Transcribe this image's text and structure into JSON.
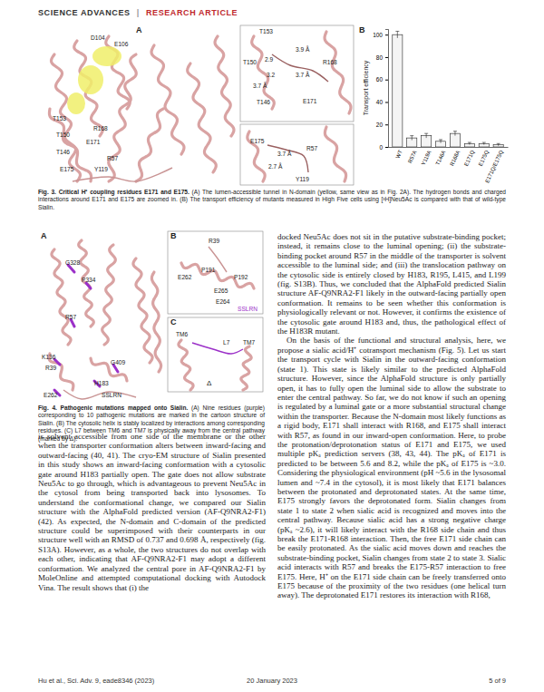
{
  "header": {
    "journal": "SCIENCE ADVANCES",
    "separator": "|",
    "section": "RESEARCH ARTICLE"
  },
  "figure_3": {
    "panel_a": {
      "letter": "A",
      "labels": [
        "D104",
        "E106",
        "T153",
        "T150",
        "T146",
        "E171",
        "R168",
        "R57",
        "E175",
        "Y119"
      ],
      "inset_1_labels": [
        "T153",
        "3.9 Å",
        "T150",
        "2.9",
        "3.7 Å",
        "3.2",
        "R168",
        "3.7 Å",
        "T146",
        "E171"
      ],
      "inset_2_labels": [
        "E175",
        "R57",
        "3.7 Å",
        "2.7 Å",
        "Y119"
      ]
    },
    "panel_b": {
      "letter": "B"
    },
    "caption": {
      "label": "Fig. 3.",
      "title": "Critical H⁺ coupling residues E171 and E175.",
      "text": "(A) The lumen-accessible tunnel in N-domain (yellow, same view as in Fig. 2A). The hydrogen bonds and charged interactions around E171 and E175 are zoomed in. (B) The transport efficiency of mutants measured in High Five cells using [³H]Neu5Ac is compared with that of wild-type Sialin."
    }
  },
  "chart_data": {
    "type": "bar",
    "y_label": "Transport efficiency",
    "categories": [
      "WT",
      "R57A",
      "Y119A",
      "T146A",
      "R168A",
      "E171Q",
      "E175Q",
      "E171Q/E175Q"
    ],
    "values": [
      100,
      8,
      10,
      5,
      12,
      3,
      3,
      2
    ],
    "errors": [
      3,
      2,
      2,
      1.5,
      2,
      1,
      1,
      1
    ],
    "color": "#f4f4f4",
    "ylim": [
      0,
      105
    ],
    "yticks": [
      0,
      20,
      40,
      60,
      80,
      100
    ],
    "grid": false
  },
  "figure_4": {
    "panel_a": {
      "letter": "A",
      "labels": [
        "G328",
        "P334",
        "R57",
        "G409",
        "K136",
        "R39",
        "H183",
        "E262",
        "SSLRN"
      ]
    },
    "panel_b": {
      "letter": "B",
      "labels": [
        "R39",
        "P191",
        "E262",
        "P192",
        "E265",
        "E264",
        "SSLRN"
      ]
    },
    "panel_c": {
      "letter": "C",
      "labels": [
        "TM6",
        "L7",
        "TM7",
        "Δ"
      ]
    },
    "caption": {
      "label": "Fig. 4.",
      "title": "Pathogenic mutations mapped onto Sialin.",
      "text": "(A) Nine residues (purple) corresponding to 10 pathogenic mutations are marked in the cartoon structure of Sialin. (B) The cytosolic helix is stably localized by interactions among corresponding residues. (C) L7 between TM6 and TM7 is physically away from the central pathway (marked by Δ)."
    }
  },
  "body": {
    "left_column": [
      "is solvent accessible from one side of the membrane or the other when the transporter conformation alters between inward-facing and outward-facing (40, 41). The cryo-EM structure of Sialin presented in this study shows an inward-facing conformation with a cytosolic gate around H183 partially open. The gate does not allow substrate Neu5Ac to go through, which is advantageous to prevent Neu5Ac in the cytosol from being transported back into lysosomes. To understand the conformational change, we compared our Sialin structure with the AlphaFold predicted version (AF-Q9NRA2-F1) (42). As expected, the N-domain and C-domain of the predicted structure could be superimposed with their counterparts in our structure well with an RMSD of 0.737 and 0.698 Å, respectively (fig. S13A). However, as a whole, the two structures do not overlap with each other, indicating that AF-Q9NRA2-F1 may adopt a different conformation. We analyzed the central pore in AF-Q9NRA2-F1 by MoleOnline and attempted computational docking with Autodock Vina. The result shows that (i) the"
    ],
    "right_column": [
      "docked Neu5Ac does not sit in the putative substrate-binding pocket; instead, it remains close to the luminal opening; (ii) the substrate-binding pocket around R57 in the middle of the transporter is solvent accessible to the luminal side; and (iii) the translocation pathway on the cytosolic side is entirely closed by H183, R195, L415, and L199 (fig. S13B). Thus, we concluded that the AlphaFold predicted Sialin structure AF-Q9NRA2-F1 likely in the outward-facing partially open conformation. It remains to be seen whether this conformation is physiologically relevant or not. However, it confirms the existence of the cytosolic gate around H183 and, thus, the pathological effect of the H183R mutant.",
      "On the basis of the functional and structural analysis, here, we propose a sialic acid/H⁺ cotransport mechanism (Fig. 5). Let us start the transport cycle with Sialin in the outward-facing conformation (state 1). This state is likely similar to the predicted AlphaFold structure. However, since the AlphaFold structure is only partially open, it has to fully open the luminal side to allow the substrate to enter the central pathway. So far, we do not know if such an opening is regulated by a luminal gate or a more substantial structural change within the transporter. Because the N-domain most likely functions as a rigid body, E171 shall interact with R168, and E175 shall interact with R57, as found in our inward-open conformation. Here, to probe the protonation/deprotonation status of E171 and E175, we used multiple pKₐ prediction servers (38, 43, 44). The pKₐ of E171 is predicted to be between 5.6 and 8.2, while the pKₐ of E175 is ~3.0. Considering the physiological environment (pH ~5.6 in the lysosomal lumen and ~7.4 in the cytosol), it is most likely that E171 balances between the protonated and deprotonated states. At the same time, E175 strongly favors the deprotonated form. Sialin changes from state 1 to state 2 when sialic acid is recognized and moves into the central pathway. Because sialic acid has a strong negative charge (pKₐ ~2.6), it will likely interact with the R168 side chain and thus break the E171-R168 interaction. Then, the free E171 side chain can be easily protonated. As the sialic acid moves down and reaches the substrate-binding pocket, Sialin changes from state 2 to state 3. Sialic acid interacts with R57 and breaks the E175-R57 interaction to free E175. Here, H⁺ on the E171 side chain can be freely transferred onto E175 because of the proximity of the two residues (one helical turn away). The deprotonated E171 restores its interaction with R168,"
    ]
  },
  "footer": {
    "citation": "Hu et al., Sci. Adv. 9, eade8346 (2023)",
    "date": "20 January 2023",
    "page": "5 of 9"
  }
}
